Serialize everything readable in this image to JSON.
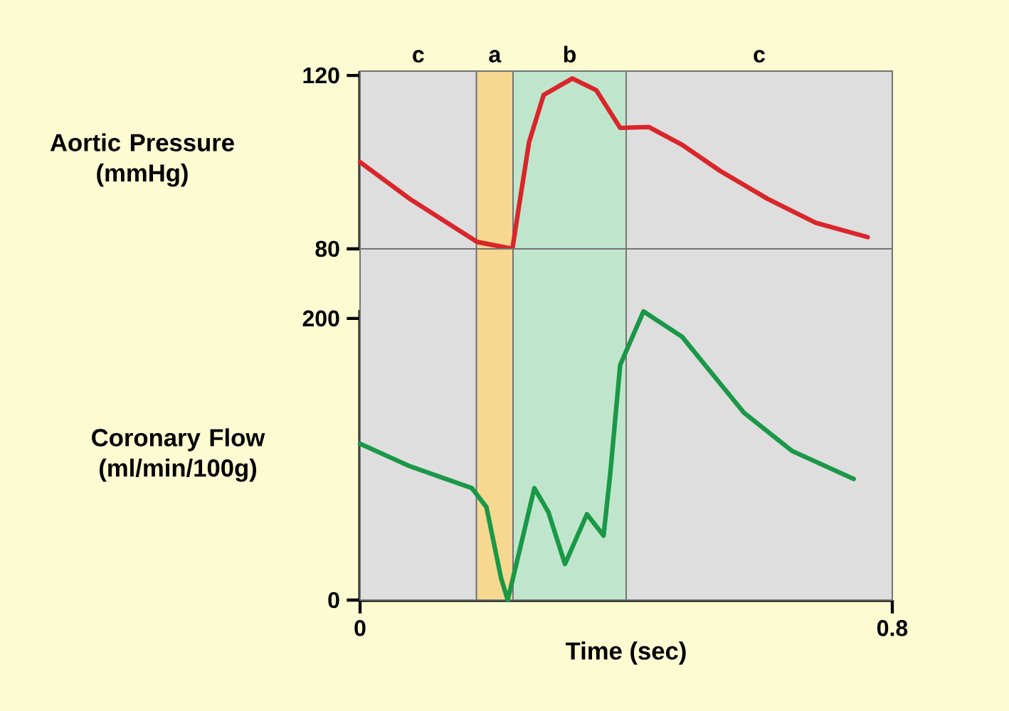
{
  "chart_data": [
    {
      "type": "line",
      "ylabel": "Aortic Pressure (mmHg)",
      "x": [
        0,
        0.075,
        0.176,
        0.229,
        0.237,
        0.254,
        0.276,
        0.319,
        0.355,
        0.391,
        0.434,
        0.484,
        0.541,
        0.613,
        0.685,
        0.763
      ],
      "series": [
        {
          "color": "#d9262b",
          "values": [
            100,
            91.5,
            81.6,
            80,
            88,
            104.6,
            115.5,
            119.3,
            116.6,
            107.9,
            108.1,
            104,
            98,
            91.5,
            86,
            82.7
          ]
        }
      ],
      "xlim": [
        0,
        0.8
      ],
      "ylim": [
        80,
        121
      ],
      "yticks": [
        80,
        120
      ],
      "tick_labels": "y",
      "bands": [
        {
          "axis": "x",
          "from": 0,
          "to": 0.175,
          "label": "c",
          "color": "#dedede"
        },
        {
          "axis": "x",
          "from": 0.175,
          "to": 0.23,
          "label": "a",
          "color": "#f6d890"
        },
        {
          "axis": "x",
          "from": 0.23,
          "to": 0.4,
          "label": "b",
          "color": "#bfe6cc"
        },
        {
          "axis": "x",
          "from": 0.4,
          "to": 0.8,
          "label": "c",
          "color": "#dedede"
        }
      ]
    },
    {
      "type": "line",
      "xlabel": "Time (sec)",
      "ylabel": "Coronary Flow (ml/min/100g)",
      "x": [
        0,
        0.075,
        0.168,
        0.19,
        0.212,
        0.222,
        0.24,
        0.262,
        0.283,
        0.308,
        0.341,
        0.366,
        0.376,
        0.391,
        0.426,
        0.484,
        0.577,
        0.649,
        0.742
      ],
      "series": [
        {
          "color": "#1a9848",
          "values": [
            111,
            95,
            79.5,
            66,
            15.5,
            0,
            35.7,
            79.5,
            62.6,
            25.6,
            61,
            45.8,
            89.6,
            167,
            205,
            187,
            133,
            106,
            86
          ]
        }
      ],
      "xlim": [
        0,
        0.8
      ],
      "xticks": [
        0,
        0.8
      ],
      "ylim": [
        0,
        206
      ],
      "yticks": [
        0,
        200
      ],
      "bands": [
        {
          "axis": "x",
          "from": 0,
          "to": 0.175,
          "color": "#dedede"
        },
        {
          "axis": "x",
          "from": 0.175,
          "to": 0.23,
          "color": "#f6d890"
        },
        {
          "axis": "x",
          "from": 0.23,
          "to": 0.4,
          "color": "#bfe6cc"
        },
        {
          "axis": "x",
          "from": 0.4,
          "to": 0.8,
          "color": "#dedede"
        }
      ]
    }
  ]
}
